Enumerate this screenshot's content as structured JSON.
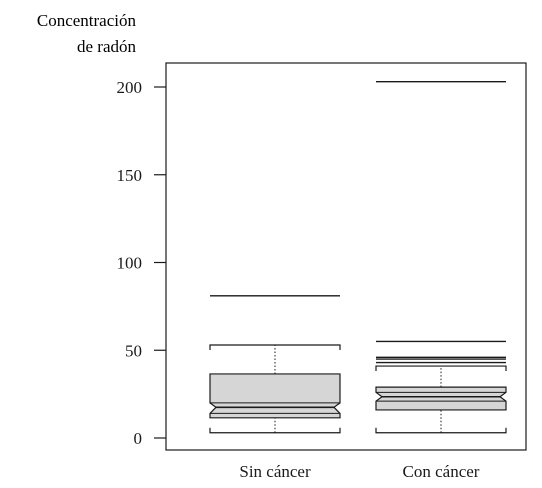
{
  "chart_data": {
    "type": "boxplot",
    "ylabel_line1": "Concentración",
    "ylabel_line2": "de radón",
    "ylim": [
      0,
      200
    ],
    "yticks": [
      0,
      50,
      100,
      150,
      200
    ],
    "grid": false,
    "categories": [
      "Sin cáncer",
      "Con cáncer"
    ],
    "boxes": [
      {
        "category": "Sin cáncer",
        "whisker_low": 3,
        "q1": 11.5,
        "notch_low": 14,
        "median": 17.5,
        "notch_high": 20,
        "q3": 36.5,
        "whisker_high": 53,
        "outliers": [
          81
        ]
      },
      {
        "category": "Con cáncer",
        "whisker_low": 3,
        "q1": 16,
        "notch_low": 21,
        "median": 23.5,
        "notch_high": 26,
        "q3": 29,
        "whisker_high": 41,
        "outliers": [
          43,
          45,
          46,
          55,
          203
        ]
      }
    ],
    "colors": {
      "box_fill": "#d6d6d6",
      "stroke": "#1a1a1a"
    }
  }
}
